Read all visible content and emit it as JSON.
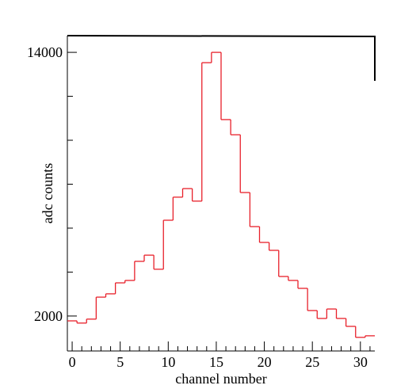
{
  "chart_data": {
    "type": "histogram",
    "xlabel": "channel number",
    "ylabel": "adc counts",
    "bins": [
      -0.5,
      0.5,
      1.5,
      2.5,
      3.5,
      4.5,
      5.5,
      6.5,
      7.5,
      8.5,
      9.5,
      10.5,
      11.5,
      12.5,
      13.5,
      14.5,
      15.5,
      16.5,
      17.5,
      18.5,
      19.5,
      20.5,
      21.5,
      22.5,
      23.5,
      24.5,
      25.5,
      26.5,
      27.5,
      28.5,
      29.5,
      30.5,
      31.5
    ],
    "values": [
      1780,
      1680,
      1860,
      2860,
      3010,
      3510,
      3620,
      4490,
      4770,
      4130,
      6360,
      7410,
      7800,
      7230,
      13530,
      14000,
      10940,
      10250,
      7620,
      6070,
      5350,
      4990,
      3800,
      3620,
      3260,
      2250,
      1890,
      2320,
      1890,
      1530,
      1030,
      1100
    ],
    "color": "#e8202a",
    "xlim": [
      -0.5,
      31.5
    ],
    "ylim": [
      410,
      14760
    ],
    "xticks": [
      0,
      5,
      10,
      15,
      20,
      25,
      30
    ],
    "xminorticks": [
      1,
      2,
      3,
      4,
      6,
      7,
      8,
      9,
      11,
      12,
      13,
      14,
      16,
      17,
      18,
      19,
      21,
      22,
      23,
      24,
      26,
      27,
      28,
      29,
      31
    ],
    "yticks": [
      2000,
      14000
    ],
    "yminorticks": [
      4000,
      6000,
      8000,
      10000,
      12000
    ]
  }
}
